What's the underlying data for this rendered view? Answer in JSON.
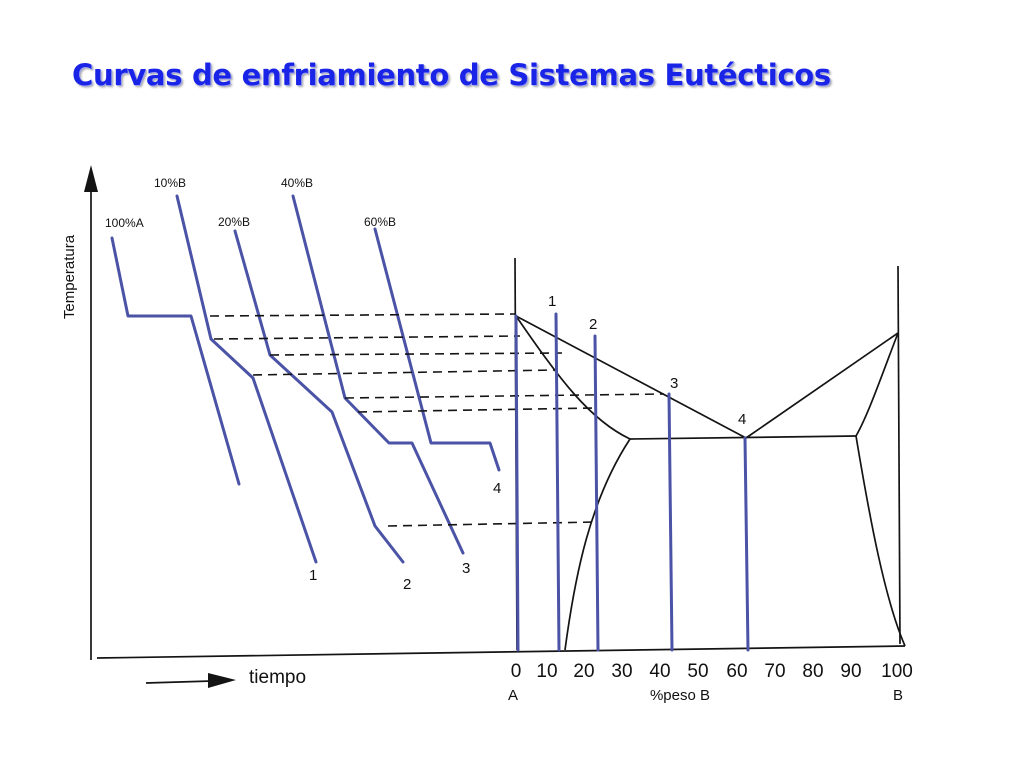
{
  "title": "Curvas de enfriamiento de Sistemas Eutécticos",
  "axes": {
    "y_label": "Temperatura",
    "x_label_time": "tiempo",
    "x_label_composition": "%peso B",
    "left_component": "A",
    "right_component": "B",
    "composition_ticks": [
      "0",
      "10",
      "20",
      "30",
      "40",
      "50",
      "60",
      "70",
      "80",
      "90",
      "100"
    ]
  },
  "cooling_curves": {
    "labels_top": [
      "100%A",
      "10%B",
      "20%B",
      "40%B",
      "60%B"
    ],
    "labels_bottom": [
      "1",
      "2",
      "3",
      "4"
    ]
  },
  "phase_diagram": {
    "composition_line_labels": [
      "1",
      "2",
      "3",
      "4"
    ]
  },
  "colors": {
    "title": "#1a24e6",
    "curves": "#4b53a6",
    "ink": "#141414"
  }
}
